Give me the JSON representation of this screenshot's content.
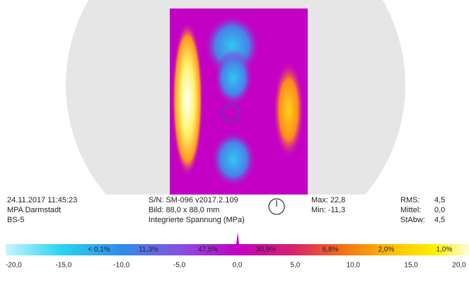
{
  "info_left": [
    "24.11.2017 11:45:23",
    "MPA Darmstadt",
    "BS-5"
  ],
  "info_middle": [
    "S/N: SM-096 v2017.2.109",
    "Bild: 88,0 x 88,0 mm",
    "Integrierte Spannung (MPa)"
  ],
  "extremes": [
    "Max: 22,8",
    "Min: -11,3"
  ],
  "stats": [
    [
      "RMS:",
      "4,5"
    ],
    [
      "Mittel:",
      "0,0"
    ],
    [
      "StAbw:",
      "4,5"
    ]
  ],
  "colorbar": {
    "percentages": [
      "< 0,1%",
      "11,3%",
      "47,5%",
      "30,9%",
      "6,8%",
      "2,0%",
      "1,0%"
    ],
    "ticks": [
      "-20,0",
      "-15,0",
      "-10,0",
      "-5,0",
      "0,0",
      "5,0",
      "10,0",
      "15,0",
      "20,0"
    ]
  }
}
